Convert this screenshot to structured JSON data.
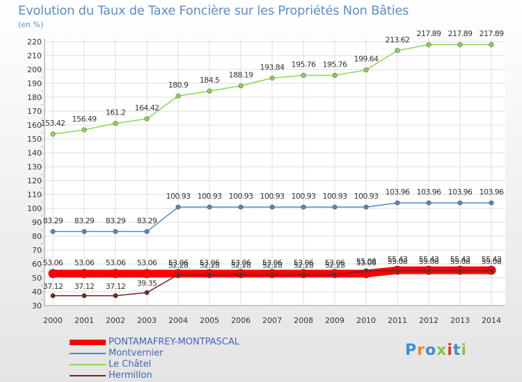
{
  "title": "Evolution du Taux de Taxe Foncière sur les Propriétés Non Bâties",
  "unit_label": "(en %)",
  "logo_text": "Proxiti",
  "chart_data": {
    "type": "line",
    "title": "Evolution du Taux de Taxe Foncière sur les Propriétés Non Bâties",
    "ylabel": "(en %)",
    "xlabel": "",
    "ylim": [
      30,
      220
    ],
    "yticks": [
      30,
      40,
      50,
      60,
      70,
      80,
      90,
      100,
      110,
      120,
      130,
      140,
      150,
      160,
      170,
      180,
      190,
      200,
      210,
      220
    ],
    "categories": [
      "2000",
      "2001",
      "2002",
      "2003",
      "2004",
      "2005",
      "2006",
      "2007",
      "2008",
      "2009",
      "2010",
      "2011",
      "2012",
      "2013",
      "2014"
    ],
    "grid": true,
    "series": [
      {
        "name": "PONTAMAFREY-MONTPASCAL",
        "color": "#ff0000",
        "values": [
          53.06,
          53.06,
          53.06,
          53.06,
          53.06,
          53.06,
          53.06,
          53.06,
          53.06,
          53.06,
          53.06,
          55.43,
          55.43,
          55.43,
          55.43
        ],
        "labels": [
          "53.06",
          "53.06",
          "53.06",
          "53.06",
          "53.06",
          "53.06",
          "53.06",
          "53.06",
          "53.06",
          "53.06",
          "53.06",
          "55.43",
          "55.43",
          "55.43",
          "55.43"
        ]
      },
      {
        "name": "Montvernier",
        "color": "#4a8ac8",
        "values": [
          83.29,
          83.29,
          83.29,
          83.29,
          100.93,
          100.93,
          100.93,
          100.93,
          100.93,
          100.93,
          100.93,
          103.96,
          103.96,
          103.96,
          103.96
        ],
        "labels": [
          "83.29",
          "83.29",
          "83.29",
          "83.29",
          "100.93",
          "100.93",
          "100.93",
          "100.93",
          "100.93",
          "100.93",
          "100.93",
          "103.96",
          "103.96",
          "103.96",
          "103.96"
        ]
      },
      {
        "name": "Le Châtel",
        "color": "#8ad650",
        "values": [
          153.42,
          156.49,
          161.2,
          164.42,
          180.9,
          184.5,
          188.19,
          193.84,
          195.76,
          195.76,
          199.64,
          213.62,
          217.89,
          217.89,
          217.89
        ],
        "labels": [
          "153.42",
          "156.49",
          "161.2",
          "164.42",
          "180.9",
          "184.5",
          "188.19",
          "193.84",
          "195.76",
          "195.76",
          "199.64",
          "213.62",
          "217.89",
          "217.89",
          "217.89"
        ]
      },
      {
        "name": "Hermillon",
        "color": "#7a2020",
        "values": [
          37.12,
          37.12,
          37.12,
          39.35,
          52.28,
          52.28,
          52.28,
          52.28,
          52.28,
          52.28,
          55.08,
          55.08,
          55.08,
          55.08,
          55.08
        ],
        "labels": [
          "37.12",
          "37.12",
          "37.12",
          "39.35",
          "52.28",
          "52.28",
          "52.28",
          "52.28",
          "52.28",
          "52.28",
          "55.08",
          "55.08",
          "55.08",
          "55.08",
          "55.08"
        ]
      }
    ]
  }
}
